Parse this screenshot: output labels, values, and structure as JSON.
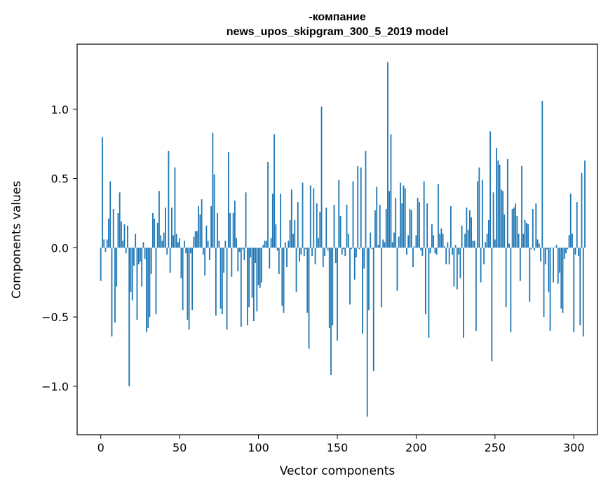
{
  "chart_data": {
    "type": "bar",
    "title_line1": "-компание",
    "title_line2": "news_upos_skipgram_300_5_2019 model",
    "xlabel": "Vector components",
    "ylabel": "Components values",
    "xlim": [
      -15,
      315
    ],
    "ylim": [
      -1.35,
      1.47
    ],
    "xticks": [
      0,
      50,
      100,
      150,
      200,
      250,
      300
    ],
    "xtick_labels": [
      "0",
      "50",
      "100",
      "150",
      "200",
      "250",
      "300"
    ],
    "yticks": [
      -1.0,
      -0.5,
      0.0,
      0.5,
      1.0
    ],
    "ytick_labels": [
      "−1.0",
      "−0.5",
      "0.0",
      "0.5",
      "1.0"
    ],
    "color": "#1f77b4",
    "values": [
      -0.24,
      0.8,
      0.06,
      -0.03,
      0.06,
      0.21,
      0.48,
      -0.64,
      0.28,
      -0.54,
      -0.28,
      0.25,
      0.4,
      0.19,
      0.05,
      0.17,
      -0.04,
      0.16,
      -1.0,
      -0.32,
      -0.38,
      -0.13,
      0.1,
      -0.52,
      -0.12,
      -0.1,
      -0.28,
      0.04,
      -0.08,
      -0.61,
      -0.58,
      -0.5,
      -0.19,
      0.25,
      0.21,
      -0.48,
      0.18,
      0.41,
      0.09,
      0.05,
      0.11,
      0.29,
      -0.05,
      0.7,
      -0.18,
      0.29,
      0.09,
      0.58,
      0.1,
      0.04,
      0.07,
      -0.22,
      -0.45,
      0.05,
      -0.04,
      -0.52,
      -0.59,
      -0.04,
      -0.45,
      0.08,
      0.12,
      0.12,
      0.3,
      0.24,
      0.35,
      -0.05,
      -0.2,
      0.16,
      0.05,
      -0.09,
      0.3,
      0.83,
      0.53,
      -0.49,
      0.25,
      0.05,
      -0.44,
      -0.48,
      -0.18,
      0.05,
      -0.59,
      0.69,
      0.25,
      -0.21,
      0.25,
      0.34,
      0.07,
      -0.17,
      -0.03,
      -0.57,
      -0.01,
      -0.09,
      0.4,
      -0.56,
      -0.43,
      -0.07,
      -0.36,
      -0.53,
      -0.11,
      -0.46,
      -0.27,
      -0.29,
      -0.25,
      0.02,
      0.05,
      0.05,
      0.62,
      -0.15,
      0.07,
      0.39,
      0.82,
      0.17,
      -0.02,
      -0.19,
      0.39,
      -0.42,
      -0.47,
      0.04,
      -0.14,
      0.05,
      0.2,
      0.42,
      0.1,
      0.2,
      -0.32,
      0.33,
      -0.1,
      -0.05,
      0.47,
      -0.06,
      -0.01,
      -0.47,
      -0.73,
      0.45,
      -0.06,
      0.43,
      -0.12,
      0.32,
      0.07,
      0.26,
      1.02,
      -0.14,
      -0.06,
      0.29,
      -0.02,
      -0.58,
      -0.92,
      -0.56,
      0.31,
      -0.11,
      -0.67,
      0.49,
      0.23,
      -0.05,
      -0.01,
      -0.06,
      0.31,
      0.1,
      -0.41,
      -0.01,
      0.48,
      -0.23,
      -0.07,
      0.59,
      -0.01,
      0.58,
      -0.62,
      -0.15,
      0.7,
      -1.22,
      -0.45,
      0.11,
      -0.01,
      -0.89,
      0.27,
      0.44,
      0.02,
      0.31,
      -0.43,
      0.06,
      0.04,
      0.28,
      1.34,
      0.41,
      0.82,
      0.04,
      0.11,
      0.36,
      -0.31,
      0.08,
      0.47,
      0.32,
      0.45,
      0.43,
      -0.05,
      0.09,
      0.28,
      0.27,
      -0.14,
      0.01,
      0.09,
      0.36,
      0.33,
      -0.02,
      -0.06,
      0.48,
      -0.48,
      0.32,
      -0.65,
      -0.04,
      0.17,
      0.09,
      -0.04,
      -0.05,
      0.46,
      0.1,
      0.14,
      0.1,
      0.01,
      -0.12,
      0.04,
      -0.12,
      0.3,
      -0.05,
      -0.28,
      0.02,
      -0.3,
      -0.05,
      -0.22,
      0.16,
      -0.65,
      0.1,
      0.29,
      0.13,
      0.27,
      0.22,
      0.05,
      0.05,
      -0.6,
      0.48,
      0.58,
      -0.25,
      0.49,
      -0.12,
      0.04,
      0.1,
      0.2,
      0.84,
      -0.82,
      0.4,
      0.06,
      0.72,
      0.63,
      0.6,
      0.42,
      0.41,
      0.24,
      -0.43,
      0.64,
      0.03,
      -0.61,
      0.28,
      0.29,
      0.32,
      0.23,
      0.1,
      -0.24,
      0.59,
      0.1,
      0.2,
      0.18,
      0.17,
      -0.39,
      -0.01,
      0.28,
      -0.02,
      0.32,
      0.06,
      0.03,
      -0.1,
      1.06,
      -0.5,
      -0.12,
      -0.01,
      -0.32,
      -0.6,
      0.0,
      -0.25,
      0.0,
      0.02,
      -0.26,
      -0.18,
      -0.44,
      -0.47,
      -0.08,
      -0.04,
      -0.01,
      0.09,
      0.39,
      0.1,
      -0.61,
      -0.05,
      0.33,
      -0.06,
      -0.56,
      0.54,
      -0.64,
      0.63
    ]
  }
}
